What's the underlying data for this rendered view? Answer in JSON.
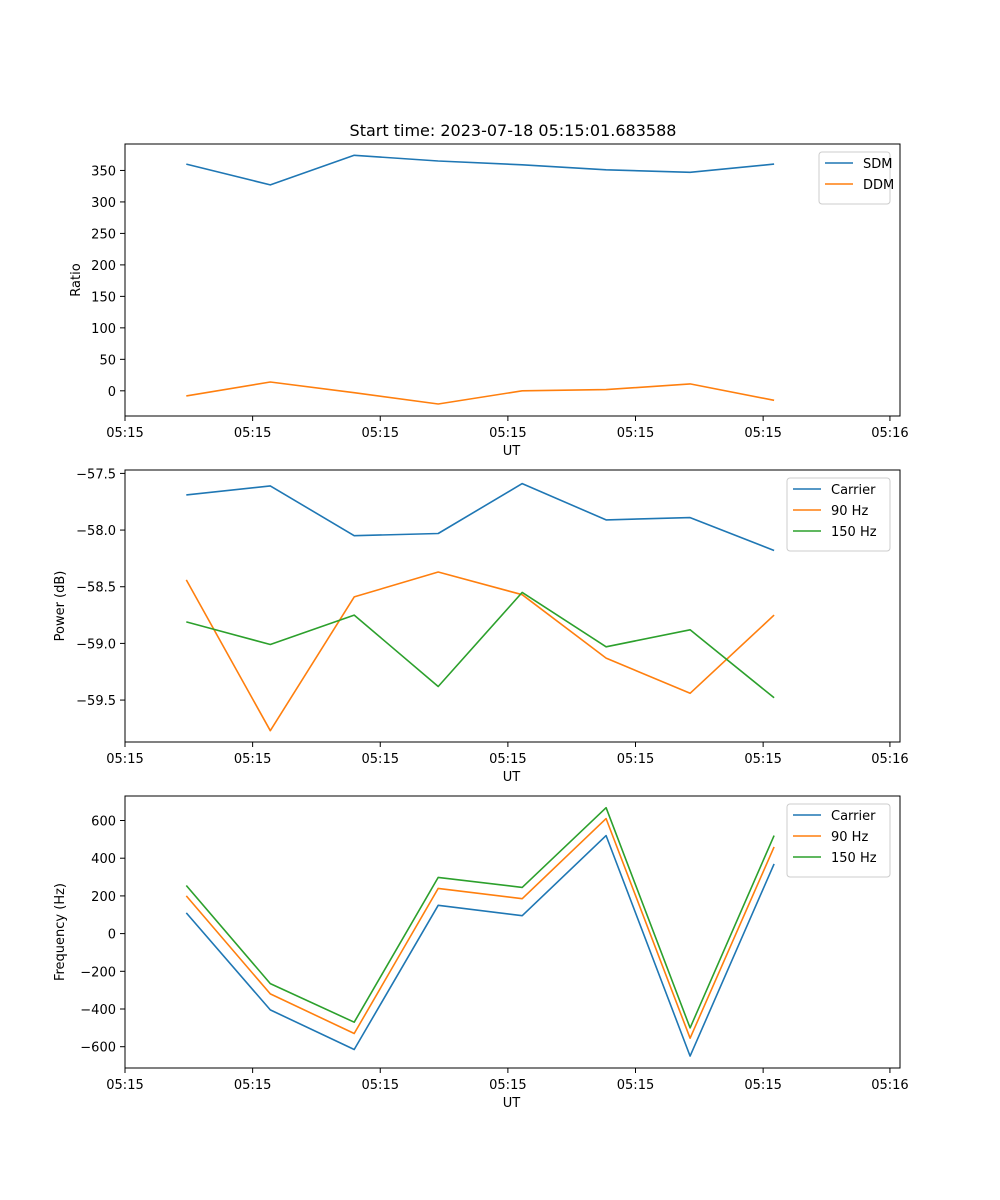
{
  "figure_title": "Start time: 2023-07-18 05:15:01.683588",
  "colors": {
    "blue": "#1f77b4",
    "orange": "#ff7f0e",
    "green": "#2ca02c"
  },
  "chart_data": [
    {
      "type": "line",
      "name": "ratio",
      "title": "Start time: 2023-07-18 05:15:01.683588",
      "xlabel": "UT",
      "ylabel": "Ratio",
      "x_index": [
        0,
        1,
        2,
        3,
        4,
        5,
        6,
        7
      ],
      "xlim": [
        -0.73,
        8.5
      ],
      "x_ticks": [
        -0.73,
        0.79,
        2.31,
        3.83,
        5.35,
        6.87,
        8.38
      ],
      "x_tick_labels": [
        "05:15",
        "05:15",
        "05:15",
        "05:15",
        "05:15",
        "05:15",
        "05:16"
      ],
      "ylim": [
        -40,
        392
      ],
      "y_ticks": [
        0,
        50,
        100,
        150,
        200,
        250,
        300,
        350
      ],
      "y_tick_labels": [
        "0",
        "50",
        "100",
        "150",
        "200",
        "250",
        "300",
        "350"
      ],
      "legend_position": "top-right",
      "series": [
        {
          "name": "SDM",
          "color": "#1f77b4",
          "values": [
            360,
            327,
            374,
            365,
            359,
            351,
            347,
            360
          ]
        },
        {
          "name": "DDM",
          "color": "#ff7f0e",
          "values": [
            -8,
            14,
            -3,
            -21,
            0,
            2,
            11,
            -15
          ]
        }
      ]
    },
    {
      "type": "line",
      "name": "power",
      "title": "",
      "xlabel": "UT",
      "ylabel": "Power (dB)",
      "x_index": [
        0,
        1,
        2,
        3,
        4,
        5,
        6,
        7
      ],
      "xlim": [
        -0.73,
        8.5
      ],
      "x_ticks": [
        -0.73,
        0.79,
        2.31,
        3.83,
        5.35,
        6.87,
        8.38
      ],
      "x_tick_labels": [
        "05:15",
        "05:15",
        "05:15",
        "05:15",
        "05:15",
        "05:15",
        "05:16"
      ],
      "ylim": [
        -59.87,
        -57.47
      ],
      "y_ticks": [
        -59.5,
        -59.0,
        -58.5,
        -58.0,
        -57.5
      ],
      "y_tick_labels": [
        "−59.5",
        "−59.0",
        "−58.5",
        "−58.0",
        "−57.5"
      ],
      "legend_position": "top-right",
      "series": [
        {
          "name": "Carrier",
          "color": "#1f77b4",
          "values": [
            -57.69,
            -57.61,
            -58.05,
            -58.03,
            -57.59,
            -57.91,
            -57.89,
            -58.18
          ]
        },
        {
          "name": "90 Hz",
          "color": "#ff7f0e",
          "values": [
            -58.44,
            -59.77,
            -58.59,
            -58.37,
            -58.57,
            -59.13,
            -59.44,
            -58.75
          ]
        },
        {
          "name": "150 Hz",
          "color": "#2ca02c",
          "values": [
            -58.81,
            -59.01,
            -58.75,
            -59.38,
            -58.55,
            -59.03,
            -58.88,
            -59.48
          ]
        }
      ]
    },
    {
      "type": "line",
      "name": "frequency",
      "title": "",
      "xlabel": "UT",
      "ylabel": "Frequency (Hz)",
      "x_index": [
        0,
        1,
        2,
        3,
        4,
        5,
        6,
        7
      ],
      "xlim": [
        -0.73,
        8.5
      ],
      "x_ticks": [
        -0.73,
        0.79,
        2.31,
        3.83,
        5.35,
        6.87,
        8.38
      ],
      "x_tick_labels": [
        "05:15",
        "05:15",
        "05:15",
        "05:15",
        "05:15",
        "05:15",
        "05:16"
      ],
      "ylim": [
        -713,
        730
      ],
      "y_ticks": [
        -600,
        -400,
        -200,
        0,
        200,
        400,
        600
      ],
      "y_tick_labels": [
        "−600",
        "−400",
        "−200",
        "0",
        "200",
        "400",
        "600"
      ],
      "legend_position": "top-right",
      "series": [
        {
          "name": "Carrier",
          "color": "#1f77b4",
          "values": [
            110,
            -405,
            -615,
            150,
            95,
            520,
            -650,
            370
          ]
        },
        {
          "name": "90 Hz",
          "color": "#ff7f0e",
          "values": [
            200,
            -320,
            -530,
            240,
            185,
            610,
            -555,
            460
          ]
        },
        {
          "name": "150 Hz",
          "color": "#2ca02c",
          "values": [
            255,
            -265,
            -470,
            298,
            245,
            668,
            -500,
            520
          ]
        }
      ]
    }
  ]
}
